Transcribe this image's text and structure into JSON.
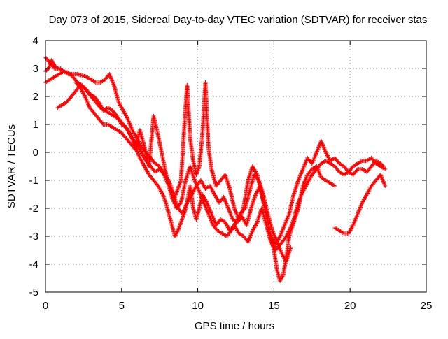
{
  "chart_data": {
    "type": "scatter",
    "title": "Day 073 of 2015, Sidereal Day-to-day VTEC variation (SDTVAR) for receiver stas",
    "xlabel": "GPS time / hours",
    "ylabel": "SDTVAR / TECUs",
    "xlim": [
      0,
      25
    ],
    "ylim": [
      -5,
      4
    ],
    "xticks": [
      "0",
      "5",
      "10",
      "15",
      "20",
      "25"
    ],
    "yticks": [
      "-5",
      "-4",
      "-3",
      "-2",
      "-1",
      "0",
      "1",
      "2",
      "3",
      "4"
    ],
    "grid": true,
    "legend": "none",
    "marker": "plus",
    "color": "#ff0000",
    "series": [
      {
        "x": [
          0.0,
          0.3,
          0.6,
          0.9,
          1.2,
          1.5,
          1.8,
          2.1,
          2.4,
          2.7,
          3.0,
          3.3,
          3.6,
          3.9,
          4.2,
          4.5,
          4.8,
          5.1,
          5.4,
          5.7,
          6.0,
          6.3,
          6.6,
          6.9,
          7.2,
          7.5,
          7.8,
          8.1,
          8.3,
          8.5,
          8.7,
          8.9,
          9.1,
          9.3,
          9.5,
          9.7,
          9.9,
          10.1,
          10.3,
          10.5,
          10.7,
          10.9,
          11.2,
          11.5,
          11.8,
          12.1,
          12.4,
          12.7,
          13.0,
          13.3,
          13.6,
          13.9,
          14.2,
          14.5,
          14.8,
          15.1,
          15.4,
          15.7,
          16.0,
          16.3,
          16.6,
          16.9,
          17.2,
          17.5,
          17.8,
          18.1,
          18.4,
          18.7,
          19.0,
          19.3,
          19.6,
          19.9,
          20.2,
          20.5,
          20.8,
          21.1,
          21.4,
          21.7,
          22.0,
          22.2
        ],
        "y": [
          3.4,
          3.2,
          3.0,
          3.0,
          2.9,
          2.8,
          2.8,
          2.8,
          2.75,
          2.7,
          2.6,
          2.5,
          2.5,
          2.6,
          2.8,
          2.4,
          1.8,
          1.5,
          1.2,
          0.8,
          0.5,
          0.2,
          0.0,
          -0.2,
          -0.4,
          -0.5,
          -0.8,
          -1.2,
          -1.4,
          -1.6,
          -1.3,
          -1.0,
          0.8,
          2.4,
          0.5,
          -0.3,
          -0.8,
          -0.5,
          0.6,
          2.5,
          0.2,
          -0.6,
          -1.2,
          -1.0,
          -0.8,
          -1.3,
          -2.0,
          -2.4,
          -2.0,
          -1.0,
          -0.5,
          -0.8,
          -1.5,
          -2.2,
          -3.0,
          -3.3,
          -3.0,
          -2.6,
          -2.2,
          -1.5,
          -1.0,
          -0.6,
          -0.2,
          -0.4,
          0.0,
          0.4,
          0.0,
          -0.3,
          -0.2,
          -0.4,
          -0.5,
          -0.7,
          -0.8,
          -0.6,
          -0.6,
          -0.7,
          -0.5,
          -0.3,
          -0.4,
          -0.5
        ]
      },
      {
        "x": [
          0.0,
          0.3,
          0.6,
          0.9,
          1.2,
          1.5,
          1.8,
          2.1,
          2.4,
          2.7,
          3.0,
          3.3,
          3.6,
          3.9,
          4.2,
          4.5,
          4.8,
          5.1,
          5.4,
          5.7,
          6.0,
          6.3,
          6.6,
          6.9,
          7.2,
          7.5,
          7.8,
          8.1,
          8.4,
          8.7,
          9.0,
          9.3,
          9.6,
          9.9,
          10.2,
          10.5,
          10.8,
          11.1,
          11.4,
          11.7,
          12.0,
          12.3,
          12.6,
          12.9,
          13.2,
          13.5,
          13.8,
          14.1,
          14.4,
          14.7,
          15.0,
          15.2,
          15.4,
          15.6,
          15.8,
          16.0,
          16.3,
          16.6,
          16.9,
          17.2,
          17.5,
          17.8,
          18.1,
          18.4,
          18.7,
          19.0
        ],
        "y": [
          2.5,
          2.6,
          2.7,
          2.8,
          2.9,
          2.85,
          2.7,
          2.5,
          2.4,
          2.2,
          2.0,
          1.8,
          1.6,
          1.5,
          1.4,
          1.3,
          1.2,
          1.0,
          0.8,
          0.5,
          0.3,
          0.0,
          -0.3,
          -0.5,
          -0.7,
          -0.6,
          -0.8,
          -1.0,
          -1.5,
          -2.0,
          -2.2,
          -1.8,
          -1.5,
          -1.2,
          -1.0,
          -1.3,
          -1.2,
          -1.5,
          -1.8,
          -1.6,
          -2.0,
          -2.4,
          -2.5,
          -2.3,
          -2.6,
          -2.0,
          -1.5,
          -1.2,
          -2.0,
          -2.8,
          -3.5,
          -4.2,
          -4.6,
          -4.4,
          -3.8,
          -3.0,
          -2.5,
          -2.0,
          -1.2,
          -0.8,
          -0.6,
          -0.5,
          -0.9,
          -1.0,
          -1.1,
          -1.2
        ]
      },
      {
        "x": [
          0.8,
          1.1,
          1.4,
          1.7,
          2.0,
          2.3,
          2.6,
          2.9,
          3.2,
          3.5,
          3.8,
          4.1,
          4.4,
          4.7,
          5.0,
          5.3,
          5.6,
          5.9,
          6.2,
          6.5,
          6.8,
          7.1,
          7.4,
          7.7,
          7.9,
          8.1,
          8.3,
          8.5,
          8.7,
          8.9,
          9.1,
          9.3,
          9.5,
          9.7,
          9.9,
          10.1,
          10.3,
          10.6,
          10.9,
          11.2,
          11.5,
          11.8,
          12.1,
          12.4,
          12.7,
          13.0,
          13.3,
          13.6,
          13.9,
          14.2,
          14.5,
          14.8,
          15.1,
          15.4,
          15.7,
          16.0,
          16.3,
          16.6,
          16.9,
          17.2,
          17.5,
          17.8,
          18.1,
          18.4,
          18.7,
          19.0,
          19.3,
          19.6,
          19.9,
          20.2,
          20.5,
          20.8,
          21.1,
          21.4,
          21.7,
          22.0,
          22.3
        ],
        "y": [
          1.6,
          1.7,
          1.8,
          2.0,
          2.2,
          2.4,
          2.3,
          2.1,
          2.0,
          1.8,
          1.5,
          1.6,
          1.5,
          1.3,
          1.0,
          0.9,
          0.6,
          0.2,
          -0.2,
          -0.5,
          -0.8,
          -1.0,
          -1.2,
          -1.5,
          -1.8,
          -2.2,
          -2.6,
          -3.0,
          -2.8,
          -2.5,
          -2.2,
          -1.8,
          -1.2,
          -2.0,
          -2.4,
          -2.0,
          -1.5,
          -1.8,
          -2.2,
          -2.6,
          -2.4,
          -2.5,
          -2.8,
          -2.6,
          -2.9,
          -3.0,
          -3.2,
          -2.8,
          -2.5,
          -2.0,
          -2.6,
          -3.2,
          -3.5,
          -3.3,
          -3.1,
          -2.8,
          -2.4,
          -1.8,
          -1.4,
          -1.1,
          -0.8,
          -0.6,
          -0.4,
          -0.3,
          -0.4,
          -0.5,
          -0.7,
          -0.8,
          -0.7,
          -0.5,
          -0.4,
          -0.3,
          -0.3,
          -0.2,
          -0.4,
          -0.5,
          -0.6
        ]
      },
      {
        "x": [
          2.0,
          2.3,
          2.6,
          2.9,
          3.2,
          3.5,
          3.8,
          4.1,
          4.4,
          4.7,
          5.0,
          5.3,
          5.6,
          5.9,
          6.2,
          6.5,
          6.8,
          7.1,
          7.4,
          7.7,
          8.0,
          8.3,
          8.6,
          8.9,
          9.2,
          9.5,
          9.8,
          10.1,
          10.4,
          10.7,
          11.0,
          11.3,
          11.6,
          11.9,
          12.2,
          12.5,
          12.8,
          13.1,
          13.4,
          13.7,
          14.0,
          14.3,
          14.6,
          14.9,
          15.2,
          15.5,
          15.8,
          16.1
        ],
        "y": [
          2.5,
          2.3,
          2.0,
          1.6,
          1.4,
          1.2,
          1.0,
          1.0,
          0.9,
          0.8,
          0.7,
          0.5,
          0.3,
          0.1,
          0.8,
          0.2,
          -0.5,
          1.3,
          0.6,
          -0.2,
          -1.0,
          -1.6,
          -2.0,
          -1.8,
          -1.0,
          -0.5,
          -1.0,
          -1.4,
          -1.8,
          -2.2,
          -2.6,
          -2.8,
          -2.9,
          -3.0,
          -2.8,
          -2.5,
          -2.2,
          -2.0,
          -1.4,
          -0.8,
          -1.0,
          -1.5,
          -2.2,
          -2.8,
          -3.2,
          -3.6,
          -3.9,
          -3.4
        ]
      },
      {
        "x": [
          19.0,
          19.3,
          19.6,
          19.9,
          20.2,
          20.5,
          20.8,
          21.1,
          21.4,
          21.7,
          22.0,
          22.3
        ],
        "y": [
          -2.7,
          -2.8,
          -2.9,
          -2.9,
          -2.6,
          -2.2,
          -1.8,
          -1.5,
          -1.2,
          -1.0,
          -0.8,
          -1.2
        ]
      },
      {
        "x": [
          0.0,
          0.2,
          0.4,
          0.6,
          0.8,
          1.0
        ],
        "y": [
          2.9,
          3.0,
          3.3,
          3.1,
          3.0,
          3.0
        ]
      }
    ]
  }
}
